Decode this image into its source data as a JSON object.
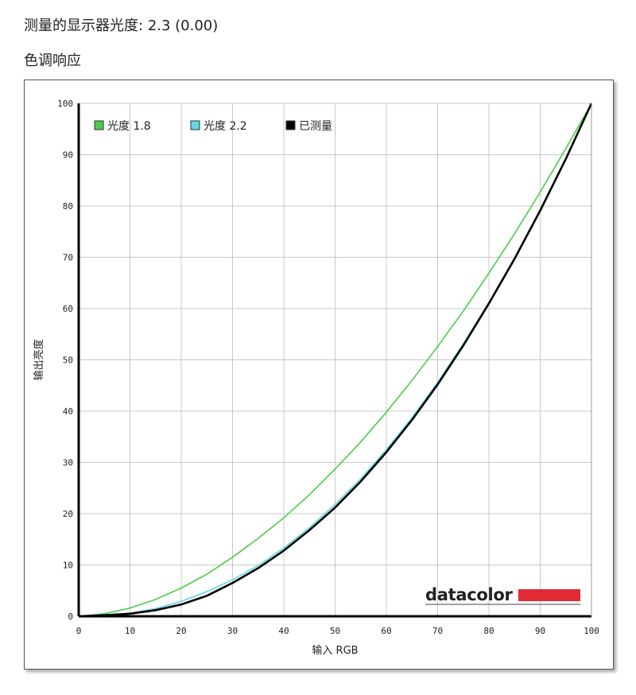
{
  "header": {
    "gamma_label": "测量的显示器光度:",
    "gamma_value": "2.3 (0.00)",
    "section_title": "色调响应"
  },
  "chart_data": {
    "type": "line",
    "title": "",
    "xlabel": "输入 RGB",
    "ylabel": "输出亮度",
    "xlim": [
      0,
      100
    ],
    "ylim": [
      0,
      100
    ],
    "x_ticks": [
      0,
      10,
      20,
      30,
      40,
      50,
      60,
      70,
      80,
      90,
      100
    ],
    "y_ticks": [
      0,
      10,
      20,
      30,
      40,
      50,
      60,
      70,
      80,
      90,
      100
    ],
    "grid": true,
    "legend_position": "top-left",
    "x": [
      0,
      5,
      10,
      15,
      20,
      25,
      30,
      35,
      40,
      45,
      50,
      55,
      60,
      65,
      70,
      75,
      80,
      85,
      90,
      95,
      100
    ],
    "series": [
      {
        "name": "光度 1.8",
        "color": "#4ecb4e",
        "values": [
          0,
          0.5,
          1.6,
          3.3,
          5.5,
          8.2,
          11.5,
          15.2,
          19.2,
          23.7,
          28.7,
          34.0,
          39.8,
          46.0,
          52.6,
          59.5,
          66.9,
          74.6,
          82.7,
          91.2,
          100
        ]
      },
      {
        "name": "光度 2.2",
        "color": "#5fd8e0",
        "values": [
          0,
          0.1,
          0.6,
          1.5,
          2.9,
          4.8,
          7.1,
          9.9,
          13.3,
          17.3,
          21.8,
          26.8,
          32.5,
          38.7,
          45.6,
          53.1,
          61.2,
          69.9,
          79.3,
          89.3,
          100
        ]
      },
      {
        "name": "已测量",
        "color": "#000000",
        "values": [
          0,
          0.2,
          0.5,
          1.2,
          2.3,
          4.0,
          6.5,
          9.4,
          12.8,
          16.8,
          21.2,
          26.3,
          32.0,
          38.3,
          45.2,
          52.8,
          61.0,
          69.7,
          79.1,
          89.2,
          100
        ]
      }
    ]
  },
  "logo": {
    "text": "datacolor",
    "bar_color": "#e02a34"
  }
}
